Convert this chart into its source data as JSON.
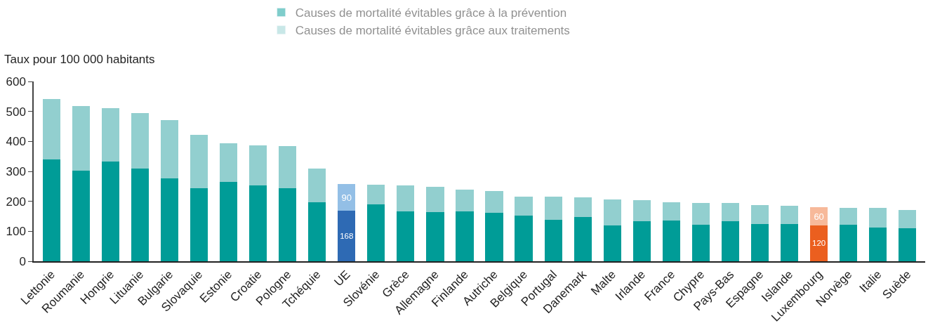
{
  "chart_data": {
    "type": "bar",
    "stacked": true,
    "ylabel": "Taux pour 100 000 habitants",
    "categories": [
      "Lettonie",
      "Roumanie",
      "Hongrie",
      "Lituanie",
      "Bulgarie",
      "Slovaquie",
      "Estonie",
      "Croatie",
      "Pologne",
      "Tchéquie",
      "UE",
      "Slovénie",
      "Grèce",
      "Allemagne",
      "Finlande",
      "Autriche",
      "Belgique",
      "Portugal",
      "Danemark",
      "Malte",
      "Irlande",
      "France",
      "Chypre",
      "Pays-Bas",
      "Espagne",
      "Islande",
      "Luxembourg",
      "Norvège",
      "Italie",
      "Suède"
    ],
    "series": [
      {
        "name": "Causes de mortalité évitables grâce à la prévention",
        "color": "#009c97",
        "colors": [
          "#009c97",
          "#009c97",
          "#009c97",
          "#009c97",
          "#009c97",
          "#009c97",
          "#009c97",
          "#009c97",
          "#009c97",
          "#009c97",
          "#2e6ab4",
          "#009c97",
          "#009c97",
          "#009c97",
          "#009c97",
          "#009c97",
          "#009c97",
          "#009c97",
          "#009c97",
          "#009c97",
          "#009c97",
          "#009c97",
          "#009c97",
          "#009c97",
          "#009c97",
          "#009c97",
          "#eb5f1f",
          "#009c97",
          "#009c97",
          "#009c97"
        ],
        "values": [
          341,
          303,
          333,
          309,
          276,
          244,
          265,
          253,
          244,
          196,
          168,
          189,
          166,
          164,
          166,
          162,
          152,
          139,
          147,
          120,
          133,
          137,
          122,
          133,
          124,
          124,
          120,
          122,
          112,
          109
        ],
        "value_labels": [
          null,
          null,
          null,
          null,
          null,
          null,
          null,
          null,
          null,
          null,
          "168",
          null,
          null,
          null,
          null,
          null,
          null,
          null,
          null,
          null,
          null,
          null,
          null,
          null,
          null,
          null,
          "120",
          null,
          null,
          null
        ]
      },
      {
        "name": "Causes de mortalité évitables grâce aux traitements",
        "color": "#92cfcf",
        "colors": [
          "#92cfcf",
          "#92cfcf",
          "#92cfcf",
          "#92cfcf",
          "#92cfcf",
          "#92cfcf",
          "#92cfcf",
          "#92cfcf",
          "#92cfcf",
          "#92cfcf",
          "#93bfe6",
          "#92cfcf",
          "#92cfcf",
          "#92cfcf",
          "#92cfcf",
          "#92cfcf",
          "#92cfcf",
          "#92cfcf",
          "#92cfcf",
          "#92cfcf",
          "#92cfcf",
          "#92cfcf",
          "#92cfcf",
          "#92cfcf",
          "#92cfcf",
          "#92cfcf",
          "#f7b99a",
          "#92cfcf",
          "#92cfcf",
          "#92cfcf"
        ],
        "values": [
          201,
          216,
          178,
          185,
          195,
          177,
          128,
          134,
          141,
          113,
          90,
          66,
          87,
          84,
          72,
          72,
          63,
          76,
          66,
          86,
          71,
          61,
          72,
          61,
          63,
          61,
          60,
          57,
          65,
          62
        ],
        "value_labels": [
          null,
          null,
          null,
          null,
          null,
          null,
          null,
          null,
          null,
          null,
          "90",
          null,
          null,
          null,
          null,
          null,
          null,
          null,
          null,
          null,
          null,
          null,
          null,
          null,
          null,
          null,
          "60",
          null,
          null,
          null
        ]
      }
    ],
    "ylim": [
      0,
      600
    ],
    "yticks": [
      0,
      100,
      200,
      300,
      400,
      500,
      600
    ],
    "legend": "top"
  }
}
